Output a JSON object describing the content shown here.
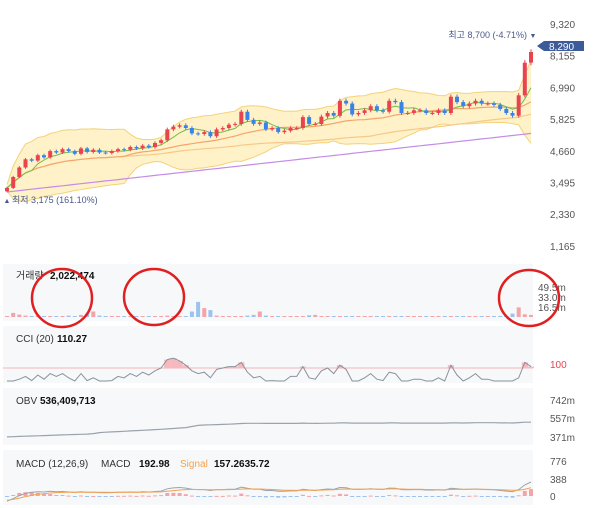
{
  "colors": {
    "up": "#e8434f",
    "down": "#3b82e6",
    "up_vol": "#f4a3a8",
    "down_vol": "#9cc3ef",
    "band_fill": "#fff2c8",
    "band_line": "#f3d27a",
    "ma_short": "#f4a56a",
    "ma_long": "#f6c98a",
    "ma_fast": "#6cc04a",
    "ma_purple": "#c58ce6",
    "obv_line": "#9aa3ad",
    "macd_line": "#9aa3ad",
    "signal_line": "#f2a350",
    "current_tag": "#3d5a99",
    "circle": "#e02020",
    "axis_text": "#555555"
  },
  "price_panel": {
    "y_ticks": [
      "9,320",
      "8,155",
      "6,990",
      "5,825",
      "4,660",
      "3,495",
      "2,330",
      "1,165"
    ],
    "high_label": "최고 8,700 (-4.71%)",
    "high_marker": "▼",
    "low_label": "최저 3,175 (161.10%)",
    "low_marker": "▲",
    "current_price": "8,290"
  },
  "volume_panel": {
    "label": "거래량",
    "value": "2,022,474",
    "y_ticks": [
      "49.5m",
      "33.0m",
      "16.5m"
    ]
  },
  "cci_panel": {
    "label": "CCI (20)",
    "value": "110.27",
    "ref_level": "100"
  },
  "obv_panel": {
    "label": "OBV",
    "value": "536,409,713",
    "y_ticks": [
      "742m",
      "557m",
      "371m"
    ]
  },
  "macd_panel": {
    "label": "MACD (12,26,9)",
    "macd_label": "MACD",
    "macd_value": "192.98",
    "signal_label": "Signal",
    "signal_value": "157.2635.72",
    "y_ticks": [
      "776",
      "388",
      "0"
    ]
  },
  "chart_data": {
    "type": "candlestick",
    "y_range": [
      1165,
      9320
    ],
    "candles_count": 86,
    "close_series": [
      3300,
      3700,
      4050,
      4350,
      4300,
      4500,
      4420,
      4650,
      4600,
      4720,
      4650,
      4550,
      4750,
      4620,
      4700,
      4600,
      4580,
      4650,
      4720,
      4700,
      4800,
      4750,
      4850,
      4800,
      4950,
      5050,
      5450,
      5550,
      5600,
      5500,
      5300,
      5280,
      5350,
      5200,
      5450,
      5500,
      5620,
      5650,
      6100,
      5800,
      5650,
      5700,
      5450,
      5500,
      5350,
      5400,
      5500,
      5500,
      5900,
      5650,
      5650,
      5920,
      6050,
      5950,
      6500,
      6400,
      6000,
      6050,
      6150,
      6300,
      6150,
      6100,
      6500,
      6450,
      6050,
      6050,
      6150,
      6150,
      6050,
      6050,
      6150,
      6050,
      6650,
      6450,
      6300,
      6400,
      6500,
      6400,
      6400,
      6350,
      6200,
      6050,
      5950,
      6700,
      7900,
      8290
    ],
    "macd_values": [
      -120,
      -60,
      10,
      60,
      90,
      100,
      95,
      110,
      100,
      105,
      95,
      85,
      100,
      88,
      90,
      80,
      75,
      80,
      90,
      90,
      95,
      90,
      100,
      95,
      105,
      115,
      170,
      190,
      200,
      185,
      160,
      150,
      150,
      130,
      150,
      150,
      160,
      160,
      210,
      180,
      160,
      160,
      130,
      130,
      110,
      110,
      120,
      120,
      160,
      140,
      130,
      150,
      165,
      155,
      200,
      195,
      160,
      155,
      160,
      170,
      160,
      155,
      185,
      180,
      150,
      145,
      150,
      150,
      140,
      138,
      145,
      138,
      180,
      170,
      155,
      160,
      165,
      155,
      150,
      145,
      130,
      115,
      100,
      150,
      260,
      330
    ],
    "signal_values": [
      -100,
      -80,
      -50,
      -15,
      15,
      40,
      55,
      70,
      80,
      85,
      88,
      88,
      90,
      90,
      90,
      88,
      86,
      85,
      86,
      87,
      88,
      88,
      90,
      91,
      93,
      97,
      111,
      127,
      141,
      150,
      152,
      152,
      151,
      147,
      148,
      148,
      150,
      152,
      163,
      166,
      165,
      164,
      157,
      152,
      144,
      137,
      134,
      131,
      137,
      138,
      136,
      139,
      144,
      146,
      157,
      164,
      163,
      162,
      162,
      163,
      163,
      161,
      166,
      169,
      165,
      161,
      159,
      157,
      154,
      150,
      149,
      147,
      153,
      157,
      156,
      157,
      158,
      158,
      156,
      154,
      149,
      142,
      133,
      137,
      161,
      195
    ],
    "volume_m": [
      1.0,
      6.0,
      3.5,
      2.0,
      1.5,
      2.0,
      1.2,
      1.0,
      1.0,
      1.0,
      2.0,
      1.0,
      3.0,
      5.0,
      8.0,
      2.0,
      1.5,
      1.2,
      1.0,
      1.0,
      1.0,
      0.8,
      1.0,
      1.0,
      1.2,
      1.5,
      2.0,
      1.5,
      1.0,
      1.0,
      8.0,
      22.0,
      13.0,
      10.0,
      2.0,
      1.5,
      1.0,
      1.0,
      1.5,
      2.0,
      3.0,
      8.0,
      2.0,
      1.5,
      1.0,
      1.0,
      1.0,
      1.2,
      1.0,
      2.5,
      3.0,
      1.0,
      1.0,
      1.0,
      1.0,
      0.8,
      1.0,
      1.2,
      1.0,
      1.0,
      1.0,
      1.0,
      1.0,
      1.0,
      1.0,
      1.0,
      1.0,
      1.0,
      1.0,
      1.0,
      1.0,
      1.0,
      1.0,
      1.0,
      1.0,
      1.0,
      1.0,
      1.0,
      1.0,
      1.0,
      1.0,
      1.0,
      5.0,
      14.0,
      4.0,
      3.0
    ],
    "obv_m": [
      400,
      402,
      404,
      406,
      408,
      410,
      412,
      414,
      416,
      418,
      420,
      422,
      424,
      426,
      430,
      440,
      443,
      446,
      449,
      452,
      455,
      458,
      461,
      464,
      467,
      470,
      474,
      478,
      482,
      486,
      496,
      506,
      510,
      512,
      514,
      516,
      518,
      520,
      524,
      526,
      526,
      526,
      525,
      525,
      525,
      525,
      525,
      525,
      528,
      526,
      525,
      526,
      527,
      527,
      530,
      530,
      528,
      528,
      528,
      528,
      528,
      528,
      530,
      530,
      528,
      528,
      528,
      528,
      528,
      528,
      528,
      528,
      530,
      530,
      529,
      530,
      531,
      531,
      531,
      531,
      530,
      530,
      529,
      532,
      536,
      536
    ],
    "cci_values": [
      -60,
      -30,
      20,
      40,
      10,
      50,
      20,
      60,
      40,
      60,
      30,
      0,
      60,
      10,
      30,
      -10,
      -20,
      10,
      40,
      30,
      60,
      40,
      70,
      50,
      80,
      100,
      160,
      170,
      150,
      120,
      80,
      60,
      70,
      30,
      90,
      100,
      110,
      110,
      140,
      70,
      30,
      40,
      -20,
      10,
      -30,
      -10,
      40,
      40,
      110,
      30,
      20,
      80,
      100,
      60,
      120,
      90,
      -20,
      -10,
      30,
      60,
      20,
      10,
      70,
      60,
      -40,
      -30,
      20,
      20,
      -20,
      -20,
      30,
      -20,
      120,
      50,
      0,
      30,
      60,
      20,
      20,
      0,
      -60,
      -100,
      -120,
      30,
      140,
      110
    ]
  }
}
